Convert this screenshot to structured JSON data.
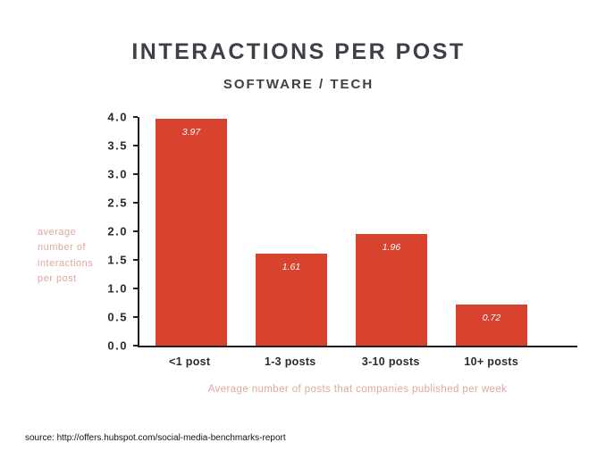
{
  "header": {
    "title": "INTERACTIONS PER POST",
    "subtitle": "SOFTWARE / TECH"
  },
  "footer": {
    "source": "source: http://offers.hubspot.com/social-media-benchmarks-report"
  },
  "colors": {
    "bar": "#d7432e",
    "title_text": "#3d4147",
    "muted_label_text": "#dda89f",
    "axis_text": "#2b2b2b",
    "axis_line": "#1f1f1f"
  },
  "chart_data": {
    "type": "bar",
    "title": "INTERACTIONS PER POST",
    "subtitle": "SOFTWARE / TECH",
    "categories": [
      "<1 post",
      "1-3 posts",
      "3-10 posts",
      "10+ posts"
    ],
    "values": [
      3.97,
      1.61,
      1.96,
      0.72
    ],
    "value_labels": [
      "3.97",
      "1.61",
      "1.96",
      "0.72"
    ],
    "xlabel": "Average number of posts that companies published per week",
    "ylabel": "average number of interactions per post",
    "ylim": [
      0,
      4
    ],
    "yticks": [
      0.0,
      0.5,
      1.0,
      1.5,
      2.0,
      2.5,
      3.0,
      3.5,
      4.0
    ],
    "grid": false,
    "legend": false,
    "bar_color": "#d7432e"
  }
}
